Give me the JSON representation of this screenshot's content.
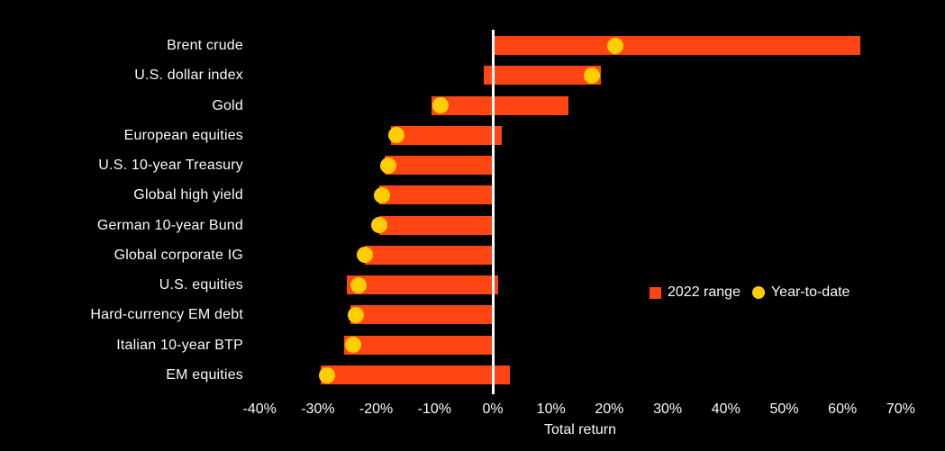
{
  "chart_data": {
    "type": "bar",
    "subtype": "floating-range-bars-with-ytd-markers",
    "orientation": "horizontal",
    "title": "",
    "xlabel": "Total return",
    "ylabel": "",
    "xlim": [
      -40,
      70
    ],
    "grid": false,
    "legend_position": "middle-right",
    "x_tick_values": [
      -40,
      -30,
      -20,
      -10,
      0,
      10,
      20,
      30,
      40,
      50,
      60,
      70
    ],
    "x_tick_labels": [
      "-40%",
      "-30%",
      "-20%",
      "-10%",
      "0%",
      "10%",
      "20%",
      "30%",
      "40%",
      "50%",
      "60%",
      "70%"
    ],
    "categories": [
      "Brent crude",
      "U.S. dollar index",
      "Gold",
      "European equities",
      "U.S. 10-year Treasury",
      "Global high yield",
      "German 10-year Bund",
      "Global corporate IG",
      "U.S. equities",
      "Hard-currency EM debt",
      "Italian 10-year BTP",
      "EM equities"
    ],
    "series": [
      {
        "name": "2022 range",
        "type": "range",
        "unit": "%",
        "values": [
          [
            0,
            63
          ],
          [
            -1.5,
            18.5
          ],
          [
            -10.5,
            13
          ],
          [
            -17.5,
            1.5
          ],
          [
            -18.5,
            0
          ],
          [
            -19.5,
            0
          ],
          [
            -19.5,
            0
          ],
          [
            -22,
            0
          ],
          [
            -25,
            1
          ],
          [
            -24.5,
            0
          ],
          [
            -25.5,
            0
          ],
          [
            -29.5,
            3
          ]
        ]
      },
      {
        "name": "Year-to-date",
        "type": "point",
        "unit": "%",
        "values": [
          21,
          17,
          -9,
          -16.5,
          -18,
          -19,
          -19.5,
          -22,
          -23,
          -23.5,
          -24,
          -28.5
        ]
      }
    ]
  },
  "legend": {
    "range_label": "2022 range",
    "ytd_label": "Year-to-date"
  },
  "axis": {
    "title": "Total return"
  },
  "colors": {
    "background": "#000000",
    "bar": "#FF4514",
    "dot": "#FFCD00",
    "text": "#FAFAFA",
    "zero_line": "#FFFFFF"
  }
}
